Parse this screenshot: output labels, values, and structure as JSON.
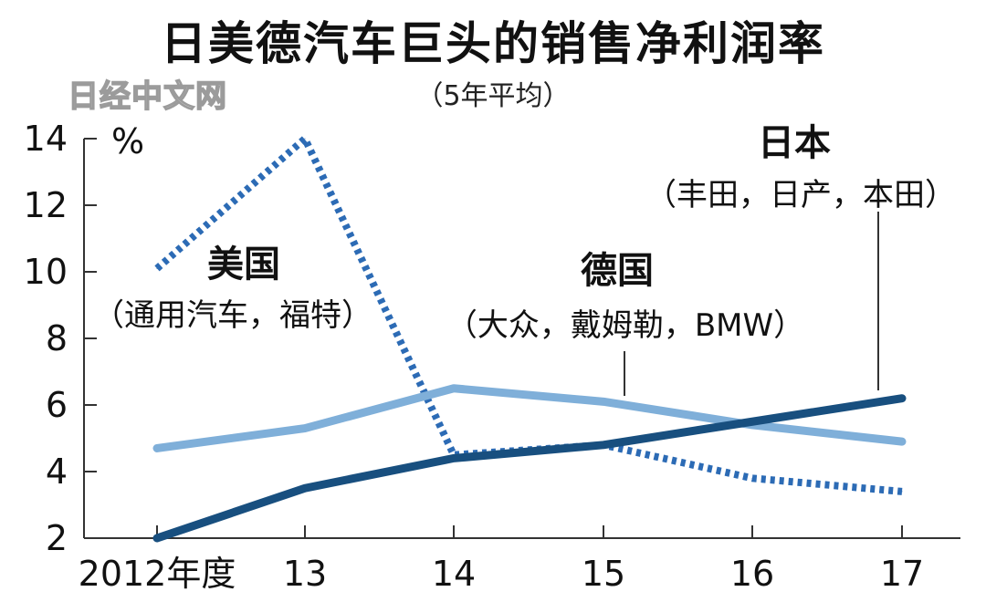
{
  "title": "日美德汽车巨头的销售净利润率",
  "subtitle": "（5年平均）",
  "watermark": "日经中文网",
  "chart_data": {
    "type": "line",
    "title": "日美德汽车巨头的销售净利润率",
    "subtitle": "（5年平均）",
    "ylabel": "%",
    "xlabel": "",
    "categories": [
      "2012年度",
      "13",
      "14",
      "15",
      "16",
      "17"
    ],
    "ylim": [
      2,
      14
    ],
    "yticks": [
      2,
      4,
      6,
      8,
      10,
      12,
      14
    ],
    "grid": false,
    "series": [
      {
        "name": "美国",
        "companies": "（通用汽车，福特）",
        "color": "#2c6bb5",
        "style": "dotted",
        "values": [
          10.1,
          14.0,
          4.5,
          4.8,
          3.8,
          3.4
        ]
      },
      {
        "name": "德国",
        "companies": "（大众，戴姆勒，BMW）",
        "color": "#7fafd9",
        "style": "solid",
        "values": [
          4.7,
          5.3,
          6.5,
          6.1,
          5.4,
          4.9
        ]
      },
      {
        "name": "日本",
        "companies": "（丰田，日产，本田）",
        "color": "#184f7f",
        "style": "solid",
        "values": [
          2.0,
          3.5,
          4.4,
          4.8,
          5.5,
          6.2
        ]
      }
    ]
  }
}
